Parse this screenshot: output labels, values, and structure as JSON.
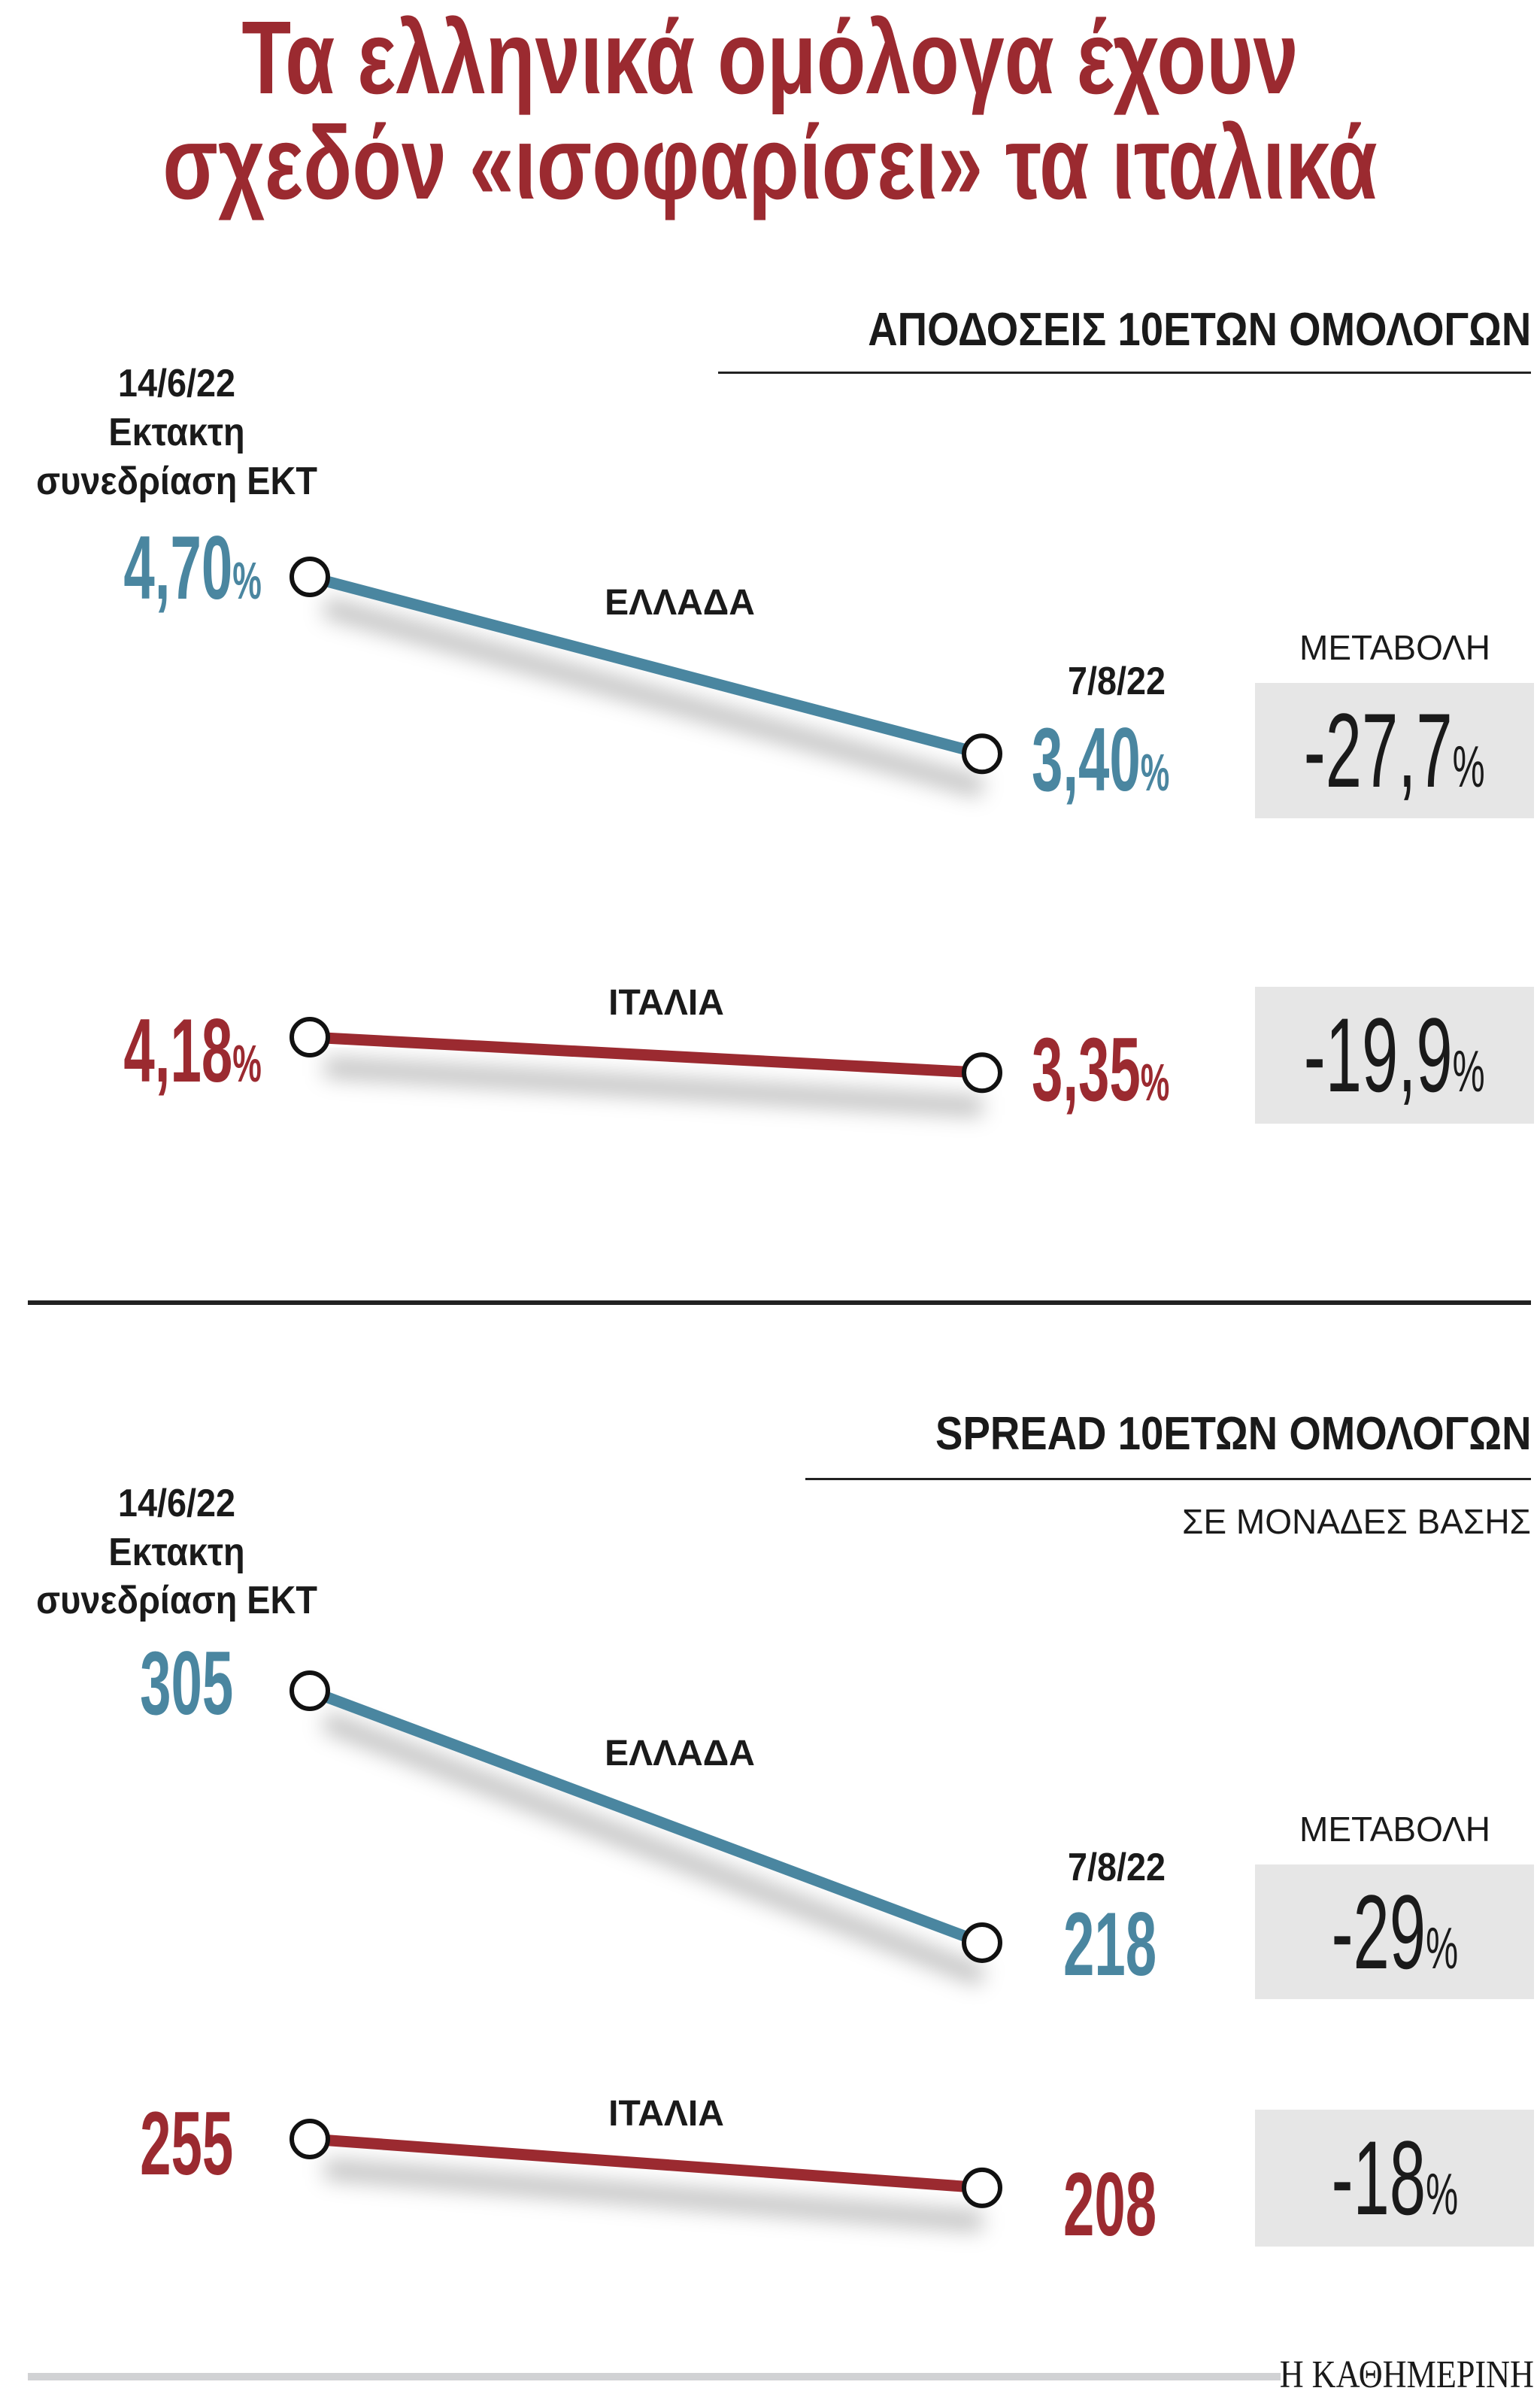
{
  "title": {
    "line1": "Τα ελληνικά ομόλογα έχουν",
    "line2": "σχεδόν «ισοφαρίσει» τα ιταλικά"
  },
  "colors": {
    "greece": "#4a86a0",
    "italy": "#9b2a30",
    "box": "#e6e6e6"
  },
  "chart_data": [
    {
      "type": "line",
      "title": "ΑΠΟΔΟΣΕΙΣ 10ΕΤΩΝ ΟΜΟΛΟΓΩΝ",
      "start_label": {
        "date": "14/6/22",
        "line2": "Εκτακτη",
        "line3": "συνεδρίαση ΕΚΤ"
      },
      "end_label": "7/8/22",
      "change_label": "ΜΕΤΑΒΟΛΗ",
      "x": [
        "14/6/22",
        "7/8/22"
      ],
      "series": [
        {
          "name": "ΕΛΛΑΔΑ",
          "values": [
            4.7,
            3.4
          ],
          "start_text": "4,70",
          "end_text": "3,40",
          "unit": "%",
          "change_text": "-27,7",
          "change": -27.7
        },
        {
          "name": "ΙΤΑΛΙΑ",
          "values": [
            4.18,
            3.35
          ],
          "start_text": "4,18",
          "end_text": "3,35",
          "unit": "%",
          "change_text": "-19,9",
          "change": -19.9
        }
      ]
    },
    {
      "type": "line",
      "title": "SPREAD 10ΕΤΩΝ ΟΜΟΛΟΓΩΝ",
      "subtitle": "ΣΕ ΜΟΝΑΔΕΣ ΒΑΣΗΣ",
      "start_label": {
        "date": "14/6/22",
        "line2": "Εκτακτη",
        "line3": "συνεδρίαση ΕΚΤ"
      },
      "end_label": "7/8/22",
      "change_label": "ΜΕΤΑΒΟΛΗ",
      "x": [
        "14/6/22",
        "7/8/22"
      ],
      "series": [
        {
          "name": "ΕΛΛΑΔΑ",
          "values": [
            305,
            218
          ],
          "start_text": "305",
          "end_text": "218",
          "change_text": "-29",
          "unit": "%",
          "change": -29
        },
        {
          "name": "ΙΤΑΛΙΑ",
          "values": [
            255,
            208
          ],
          "start_text": "255",
          "end_text": "208",
          "change_text": "-18",
          "unit": "%",
          "change": -18
        }
      ]
    }
  ],
  "footer": {
    "logo": "Η ΚΑΘΗΜΕΡΙΝΗ"
  }
}
